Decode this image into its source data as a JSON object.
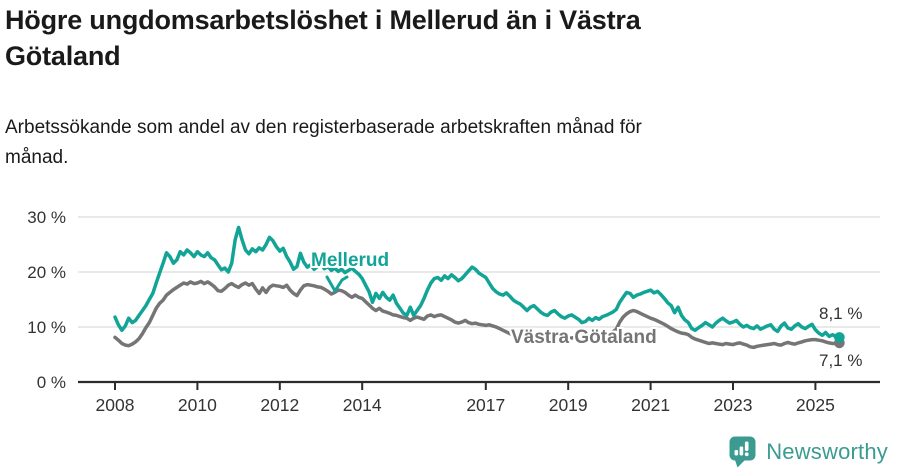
{
  "title": "Högre ungdomsarbetslöshet i Mellerud än i Västra\nGötaland",
  "subtitle": "Arbetssökande som andel av den registerbaserade arbetskraften månad för\nmånad.",
  "branding": {
    "logo_text": "Newsworthy",
    "logo_color": "#3b9b91",
    "logo_icon": "speech-bubble-bar-chart"
  },
  "chart_data": {
    "type": "line",
    "title": "Högre ungdomsarbetslöshet i Mellerud än i Västra Götaland",
    "subtitle": "Arbetssökande som andel av den registerbaserade arbetskraften månad för månad.",
    "unit": "%",
    "x_start_year": 2008,
    "points_per_month": 1,
    "ylim": [
      0,
      30
    ],
    "grid": true,
    "legend_position": "inline-labels",
    "yticks": [
      {
        "value": 0,
        "label": "0 %"
      },
      {
        "value": 10,
        "label": "10 %"
      },
      {
        "value": 20,
        "label": "20 %"
      },
      {
        "value": 30,
        "label": "30 %"
      }
    ],
    "xticks": [
      {
        "year": 2008,
        "label": "2008"
      },
      {
        "year": 2010,
        "label": "2010"
      },
      {
        "year": 2012,
        "label": "2012"
      },
      {
        "year": 2014,
        "label": "2014"
      },
      {
        "year": 2017,
        "label": "2017"
      },
      {
        "year": 2019,
        "label": "2019"
      },
      {
        "year": 2021,
        "label": "2021"
      },
      {
        "year": 2023,
        "label": "2023"
      },
      {
        "year": 2025,
        "label": "2025"
      }
    ],
    "series": [
      {
        "name": "Mellerud",
        "color": "#12a496",
        "end_label": "8,1 %",
        "end_value": 8.1,
        "values": [
          11.8,
          10.4,
          9.4,
          10.2,
          11.6,
          10.8,
          11.2,
          12.1,
          13.0,
          13.9,
          15.0,
          16.1,
          18.0,
          19.8,
          21.6,
          23.5,
          22.8,
          21.6,
          22.2,
          23.7,
          23.1,
          24.0,
          23.5,
          22.8,
          23.7,
          23.1,
          22.8,
          23.5,
          22.6,
          22.2,
          21.3,
          20.4,
          20.7,
          20.0,
          21.6,
          25.9,
          28.1,
          25.9,
          24.0,
          23.3,
          24.2,
          23.7,
          24.4,
          24.0,
          25.0,
          26.3,
          25.7,
          24.6,
          23.8,
          24.3,
          22.8,
          21.8,
          20.5,
          21.0,
          23.4,
          21.8,
          20.9,
          21.3,
          20.5,
          21.0,
          21.4,
          20.6,
          21.0,
          20.3,
          20.7,
          20.1,
          20.5,
          19.9,
          20.3,
          20.7,
          20.1,
          19.6,
          18.8,
          17.6,
          16.4,
          14.5,
          16.1,
          15.2,
          16.3,
          15.4,
          14.9,
          15.8,
          14.3,
          13.4,
          12.5,
          12.1,
          13.6,
          12.1,
          13.0,
          13.9,
          15.2,
          16.7,
          18.0,
          18.8,
          19.0,
          18.5,
          19.3,
          18.8,
          19.5,
          19.0,
          18.4,
          18.8,
          19.5,
          20.2,
          20.9,
          20.5,
          19.8,
          19.4,
          19.0,
          18.0,
          17.0,
          16.4,
          16.0,
          15.8,
          16.2,
          15.6,
          14.9,
          14.5,
          14.2,
          13.6,
          13.0,
          13.6,
          13.9,
          13.3,
          12.7,
          12.3,
          12.1,
          12.7,
          13.0,
          12.4,
          11.9,
          11.6,
          12.0,
          12.2,
          11.8,
          11.4,
          10.8,
          11.0,
          11.6,
          11.2,
          11.7,
          11.4,
          11.9,
          12.1,
          12.4,
          12.7,
          13.2,
          14.5,
          15.4,
          16.3,
          16.1,
          15.4,
          15.8,
          16.0,
          16.3,
          16.5,
          16.7,
          16.2,
          16.5,
          15.9,
          15.2,
          14.4,
          13.9,
          12.6,
          13.6,
          12.1,
          11.3,
          10.8,
          9.7,
          9.4,
          9.9,
          10.3,
          10.8,
          10.4,
          10.0,
          10.7,
          11.2,
          11.6,
          11.1,
          10.7,
          10.9,
          11.2,
          10.5,
          10.0,
          10.3,
          9.9,
          9.7,
          10.2,
          9.6,
          9.9,
          10.2,
          10.4,
          9.6,
          9.2,
          10.2,
          10.7,
          9.8,
          9.6,
          10.2,
          10.6,
          10.0,
          9.7,
          10.1,
          10.5,
          9.5,
          8.9,
          8.5,
          9.0,
          8.3,
          8.6,
          8.2,
          8.1
        ]
      },
      {
        "name": "Västra Götaland",
        "color": "#757575",
        "end_label": "7,1 %",
        "end_value": 7.1,
        "values": [
          8.1,
          7.6,
          7.0,
          6.7,
          6.6,
          6.9,
          7.3,
          7.9,
          8.8,
          9.9,
          10.8,
          12.1,
          13.4,
          14.3,
          14.9,
          15.8,
          16.3,
          16.8,
          17.2,
          17.6,
          18.0,
          17.8,
          18.2,
          17.9,
          18.0,
          18.3,
          17.9,
          18.2,
          17.8,
          17.3,
          16.6,
          16.5,
          17.0,
          17.6,
          17.9,
          17.5,
          17.2,
          17.7,
          18.0,
          17.6,
          17.9,
          16.9,
          16.1,
          17.1,
          16.3,
          17.2,
          17.6,
          17.5,
          17.4,
          17.2,
          17.6,
          16.7,
          16.1,
          15.7,
          16.7,
          17.5,
          17.7,
          17.6,
          17.5,
          17.3,
          17.2,
          16.9,
          16.5,
          16.0,
          16.3,
          16.7,
          16.6,
          16.3,
          15.8,
          15.4,
          15.8,
          15.4,
          15.2,
          14.6,
          14.0,
          13.4,
          13.0,
          13.4,
          12.9,
          12.7,
          12.5,
          12.2,
          12.1,
          11.9,
          11.7,
          11.6,
          11.2,
          11.6,
          11.8,
          11.6,
          11.4,
          12.0,
          12.2,
          11.9,
          12.1,
          12.2,
          11.9,
          11.6,
          11.3,
          10.9,
          10.7,
          10.9,
          11.2,
          10.8,
          10.6,
          10.7,
          10.5,
          10.4,
          10.3,
          10.4,
          10.2,
          10.0,
          9.7,
          9.4,
          9.1,
          8.8,
          8.5,
          8.4,
          8.2,
          8.0,
          7.9,
          8.1,
          8.0,
          7.8,
          7.6,
          7.5,
          7.7,
          7.6,
          7.4,
          7.5,
          7.6,
          7.8,
          7.9,
          8.0,
          8.1,
          8.0,
          7.9,
          8.1,
          8.3,
          8.2,
          8.4,
          8.5,
          8.6,
          8.8,
          8.9,
          9.1,
          9.6,
          10.9,
          11.8,
          12.4,
          12.8,
          13.0,
          12.8,
          12.5,
          12.2,
          11.9,
          11.6,
          11.4,
          11.1,
          10.8,
          10.5,
          10.1,
          9.7,
          9.4,
          9.1,
          8.9,
          8.8,
          8.6,
          8.1,
          7.8,
          7.6,
          7.4,
          7.2,
          7.0,
          7.1,
          7.0,
          6.9,
          6.8,
          7.0,
          6.9,
          6.8,
          7.0,
          7.1,
          6.9,
          6.7,
          6.4,
          6.3,
          6.5,
          6.6,
          6.7,
          6.8,
          6.9,
          7.0,
          6.8,
          6.7,
          7.0,
          7.2,
          7.0,
          6.9,
          7.1,
          7.3,
          7.5,
          7.6,
          7.7,
          7.7,
          7.6,
          7.5,
          7.3,
          7.1,
          7.0,
          7.0,
          7.1
        ]
      }
    ]
  }
}
